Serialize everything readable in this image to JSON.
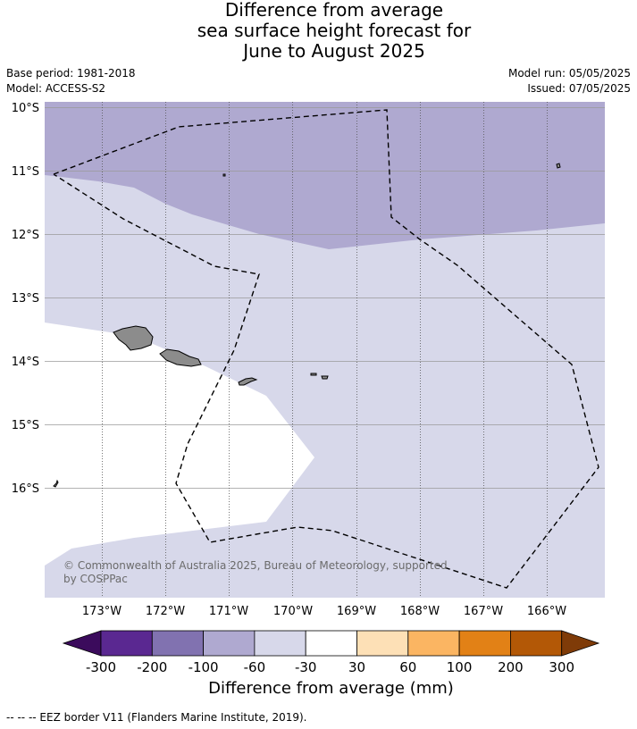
{
  "title": {
    "line1": "Difference from average",
    "line2": "sea surface height forecast for",
    "line3": "June to August 2025"
  },
  "meta": {
    "base_period": "Base period: 1981-2018",
    "model": "Model: ACCESS-S2",
    "model_run": "Model run: 05/05/2025",
    "issued": "Issued: 07/05/2025"
  },
  "map": {
    "lat_labels": [
      "10°S",
      "11°S",
      "12°S",
      "13°S",
      "14°S",
      "15°S",
      "16°S"
    ],
    "lon_labels": [
      "173°W",
      "172°W",
      "171°W",
      "170°W",
      "169°W",
      "168°W",
      "167°W",
      "166°W"
    ],
    "colors": {
      "cat_-100_-60": "#afa9d0",
      "cat_-60_-30": "#d7d8ea",
      "cat_-30_30": "#ffffff",
      "land": "#8c8c8c",
      "eez": "#000000"
    },
    "copyright_line1": "© Commonwealth of Australia 2025, Bureau of Meteorology, supported",
    "copyright_line2": "by COSPPac"
  },
  "colorbar": {
    "title": "Difference from average (mm)",
    "tick_labels": [
      "-300",
      "-200",
      "-100",
      "-60",
      "-30",
      "30",
      "60",
      "100",
      "200",
      "300"
    ],
    "colors": [
      "#3b0b5c",
      "#5a2891",
      "#8172b0",
      "#afa9d0",
      "#d7d8ea",
      "#ffffff",
      "#fde0b6",
      "#fbb562",
      "#e28116",
      "#b35806",
      "#7f3b08"
    ]
  },
  "footer": {
    "legend": "--  --  -- EEZ border V11 (Flanders Marine Institute, 2019)."
  }
}
